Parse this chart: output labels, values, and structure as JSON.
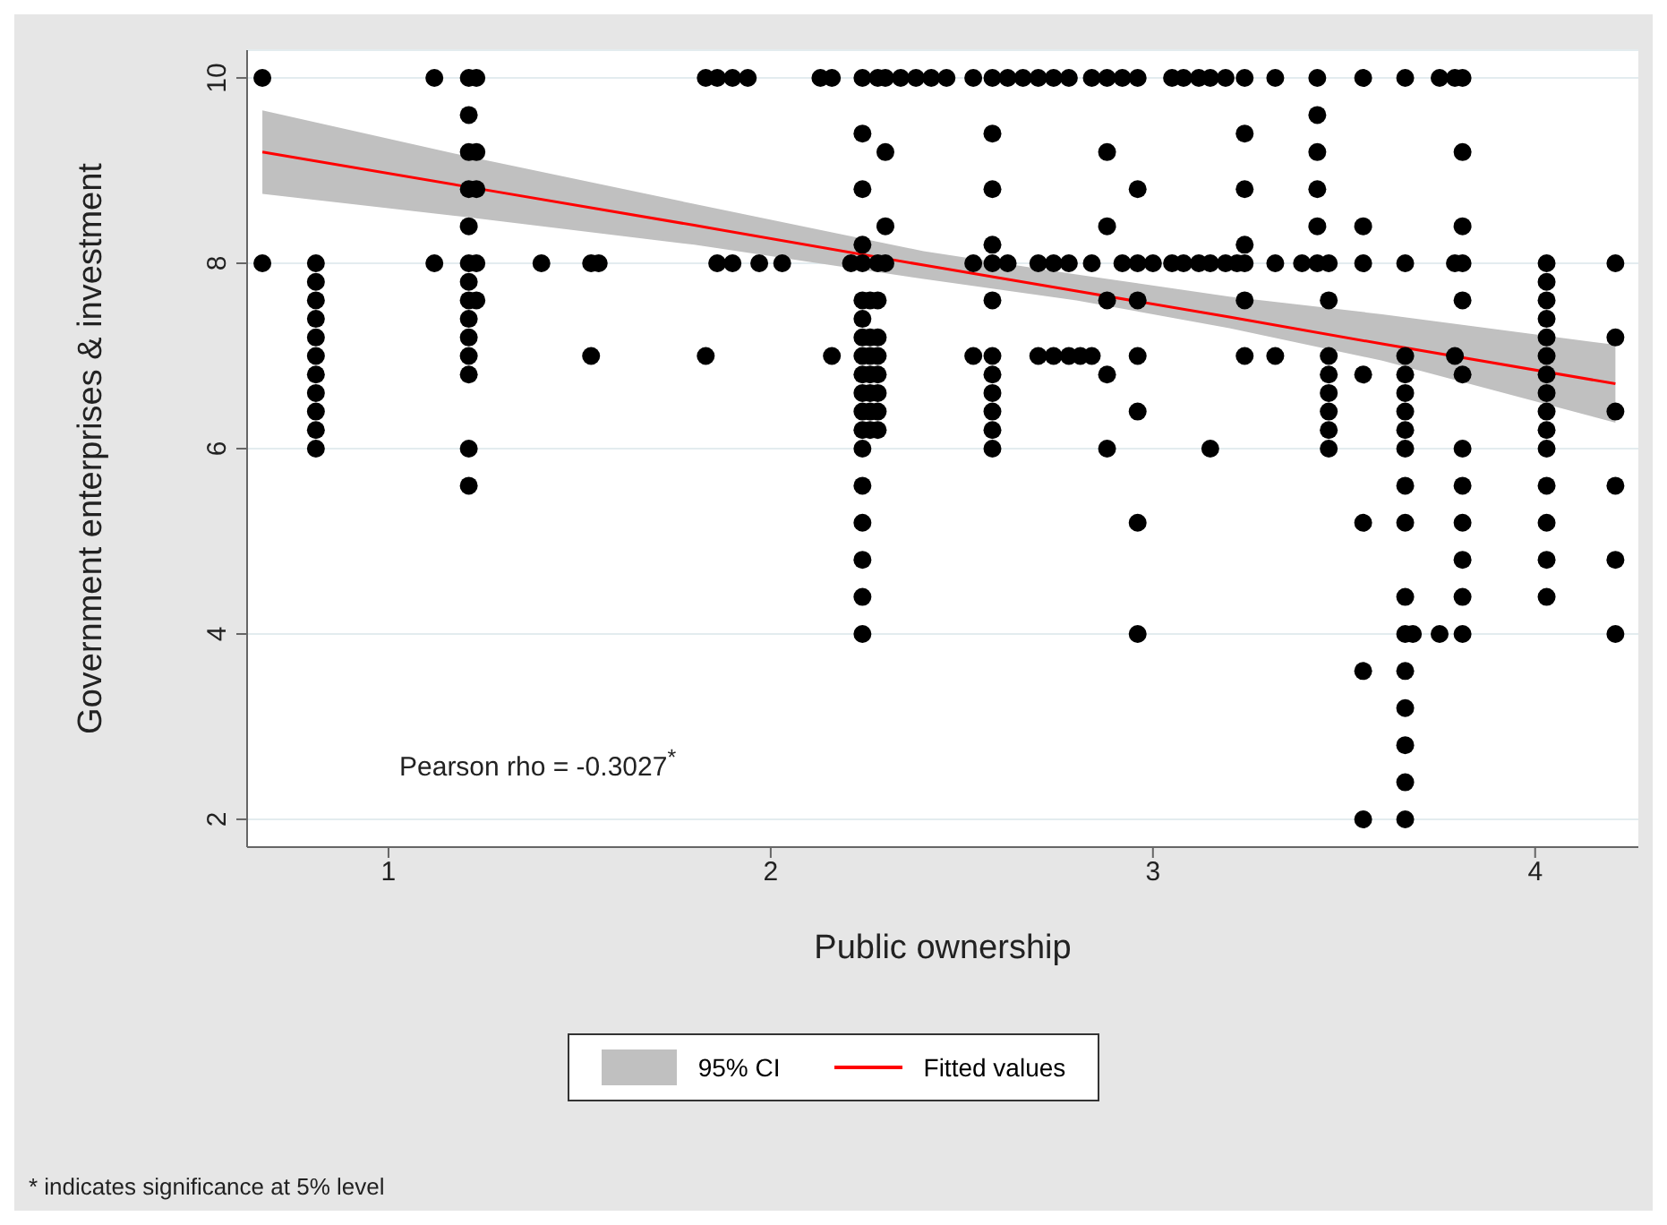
{
  "chart_data": {
    "type": "scatter",
    "xlabel": "Public ownership",
    "ylabel": "Government enterprises & investment",
    "xlim": [
      0.63,
      4.27
    ],
    "ylim": [
      1.7,
      10.3
    ],
    "xticks": [
      1,
      2,
      3,
      4
    ],
    "yticks": [
      2,
      4,
      6,
      8,
      10
    ],
    "grid": "y",
    "legend": "bottom",
    "marker": "circle",
    "annotations": [
      "Pearson rho = -0.3027$^{*}$",
      "* indicates significance at 5% level",
      "95% CI"
    ],
    "series": [
      {
        "type": "line",
        "name": "Fitted values",
        "color": "#ff0000",
        "marker": "none",
        "x": [
          0.67,
          1.2,
          1.8,
          2.4,
          2.8,
          3.2,
          3.6,
          4.21
        ],
        "values": [
          9.2,
          8.83,
          8.41,
          7.98,
          7.7,
          7.42,
          7.13,
          6.7
        ],
        "lower": [
          8.75,
          8.5,
          8.2,
          7.83,
          7.6,
          7.3,
          6.95,
          6.28
        ],
        "upper": [
          9.65,
          9.16,
          8.64,
          8.13,
          7.88,
          7.64,
          7.45,
          7.12
        ]
      },
      {
        "color": "#000000",
        "x": [
          0.67,
          0.67,
          0.81,
          0.81,
          0.81,
          0.81,
          0.81,
          0.81,
          0.81,
          0.81,
          0.81,
          0.81,
          0.81,
          1.12,
          1.12,
          1.21,
          1.21,
          1.21,
          1.21,
          1.21,
          1.21,
          1.21,
          1.21,
          1.21,
          1.21,
          1.21,
          1.21,
          1.21,
          1.21,
          1.23,
          1.23,
          1.23,
          1.23,
          1.23,
          1.4,
          1.53,
          1.53,
          1.55,
          1.83,
          1.83,
          1.86,
          1.86,
          1.9,
          1.9,
          1.94,
          1.97,
          2.03,
          2.13,
          2.16,
          2.16,
          2.21,
          2.24,
          2.24,
          2.24,
          2.24,
          2.24,
          2.24,
          2.24,
          2.24,
          2.24,
          2.24,
          2.24,
          2.24,
          2.24,
          2.24,
          2.24,
          2.24,
          2.24,
          2.24,
          2.24,
          2.26,
          2.26,
          2.26,
          2.26,
          2.26,
          2.26,
          2.26,
          2.28,
          2.28,
          2.28,
          2.28,
          2.28,
          2.28,
          2.28,
          2.28,
          2.28,
          2.3,
          2.3,
          2.3,
          2.3,
          2.34,
          2.38,
          2.42,
          2.46,
          2.53,
          2.53,
          2.53,
          2.58,
          2.58,
          2.58,
          2.58,
          2.58,
          2.58,
          2.58,
          2.58,
          2.58,
          2.58,
          2.58,
          2.58,
          2.62,
          2.62,
          2.66,
          2.7,
          2.7,
          2.7,
          2.74,
          2.74,
          2.74,
          2.78,
          2.78,
          2.78,
          2.81,
          2.84,
          2.84,
          2.84,
          2.88,
          2.88,
          2.88,
          2.88,
          2.88,
          2.88,
          2.92,
          2.92,
          2.96,
          2.96,
          2.96,
          2.96,
          2.96,
          2.96,
          2.96,
          2.96,
          3.0,
          3.05,
          3.05,
          3.08,
          3.08,
          3.12,
          3.12,
          3.15,
          3.15,
          3.15,
          3.19,
          3.19,
          3.22,
          3.24,
          3.24,
          3.24,
          3.24,
          3.24,
          3.24,
          3.24,
          3.32,
          3.32,
          3.32,
          3.39,
          3.43,
          3.43,
          3.43,
          3.43,
          3.43,
          3.43,
          3.46,
          3.46,
          3.46,
          3.46,
          3.46,
          3.46,
          3.46,
          3.46,
          3.55,
          3.55,
          3.55,
          3.55,
          3.55,
          3.55,
          3.55,
          3.66,
          3.66,
          3.66,
          3.66,
          3.66,
          3.66,
          3.66,
          3.66,
          3.66,
          3.66,
          3.66,
          3.66,
          3.66,
          3.66,
          3.66,
          3.66,
          3.66,
          3.68,
          3.75,
          3.75,
          3.79,
          3.79,
          3.79,
          3.81,
          3.81,
          3.81,
          3.81,
          3.81,
          3.81,
          3.81,
          3.81,
          3.81,
          3.81,
          3.81,
          3.81,
          4.03,
          4.03,
          4.03,
          4.03,
          4.03,
          4.03,
          4.03,
          4.03,
          4.03,
          4.03,
          4.03,
          4.03,
          4.03,
          4.03,
          4.03,
          4.21,
          4.21,
          4.21,
          4.21,
          4.21,
          4.21
        ],
        "values": [
          10,
          8,
          8,
          7.8,
          7.6,
          7.4,
          7.2,
          7,
          6.8,
          6.6,
          6.4,
          6.2,
          6,
          10,
          8,
          10,
          9.6,
          9.2,
          8.8,
          8.4,
          8,
          7.8,
          7.6,
          7.4,
          7.2,
          7,
          6.8,
          6,
          5.6,
          10,
          9.2,
          8.8,
          8,
          7.6,
          8,
          8,
          7,
          8,
          10,
          7,
          10,
          8,
          10,
          8,
          10,
          8,
          8,
          10,
          10,
          7,
          8,
          10,
          9.4,
          8.8,
          8.2,
          8,
          7.6,
          7.4,
          7.2,
          7,
          6.8,
          6.6,
          6.4,
          6.2,
          6,
          5.6,
          5.2,
          4.8,
          4.4,
          4,
          7.6,
          7.2,
          7,
          6.8,
          6.6,
          6.4,
          6.2,
          10,
          8,
          7.6,
          7.2,
          7,
          6.8,
          6.6,
          6.4,
          6.2,
          10,
          9.2,
          8.4,
          8,
          10,
          10,
          10,
          10,
          10,
          8,
          7,
          10,
          9.4,
          8.8,
          8.2,
          8,
          7.6,
          7,
          6.8,
          6.6,
          6.4,
          6.2,
          6,
          10,
          8,
          10,
          10,
          8,
          7,
          10,
          8,
          7,
          10,
          8,
          7,
          7,
          10,
          8,
          7,
          10,
          9.2,
          8.4,
          7.6,
          6.8,
          6,
          10,
          8,
          10,
          8.8,
          8,
          7.6,
          7,
          6.4,
          5.2,
          4,
          8,
          10,
          8,
          10,
          8,
          10,
          8,
          10,
          8,
          6,
          10,
          8,
          8,
          10,
          9.4,
          8.8,
          8.2,
          8,
          7.6,
          7,
          10,
          8,
          7,
          8,
          10,
          9.6,
          9.2,
          8.8,
          8.4,
          8,
          8,
          7.6,
          7,
          6.8,
          6.6,
          6.4,
          6.2,
          6,
          10,
          8.4,
          8,
          6.8,
          5.2,
          3.6,
          2,
          10,
          8,
          7,
          6.8,
          6.6,
          6.4,
          6.2,
          6,
          5.6,
          5.2,
          4.4,
          4,
          3.6,
          3.2,
          2.8,
          2.4,
          2,
          4,
          10,
          4,
          10,
          8,
          7,
          10,
          9.2,
          8.4,
          8,
          7.6,
          6.8,
          6,
          5.6,
          5.2,
          4.8,
          4.4,
          4,
          8,
          7.8,
          7.6,
          7.4,
          7.2,
          7,
          6.8,
          6.6,
          6.4,
          6.2,
          6,
          5.6,
          5.2,
          4.8,
          4.4,
          8,
          7.2,
          6.4,
          5.6,
          4.8,
          4
        ]
      }
    ]
  }
}
